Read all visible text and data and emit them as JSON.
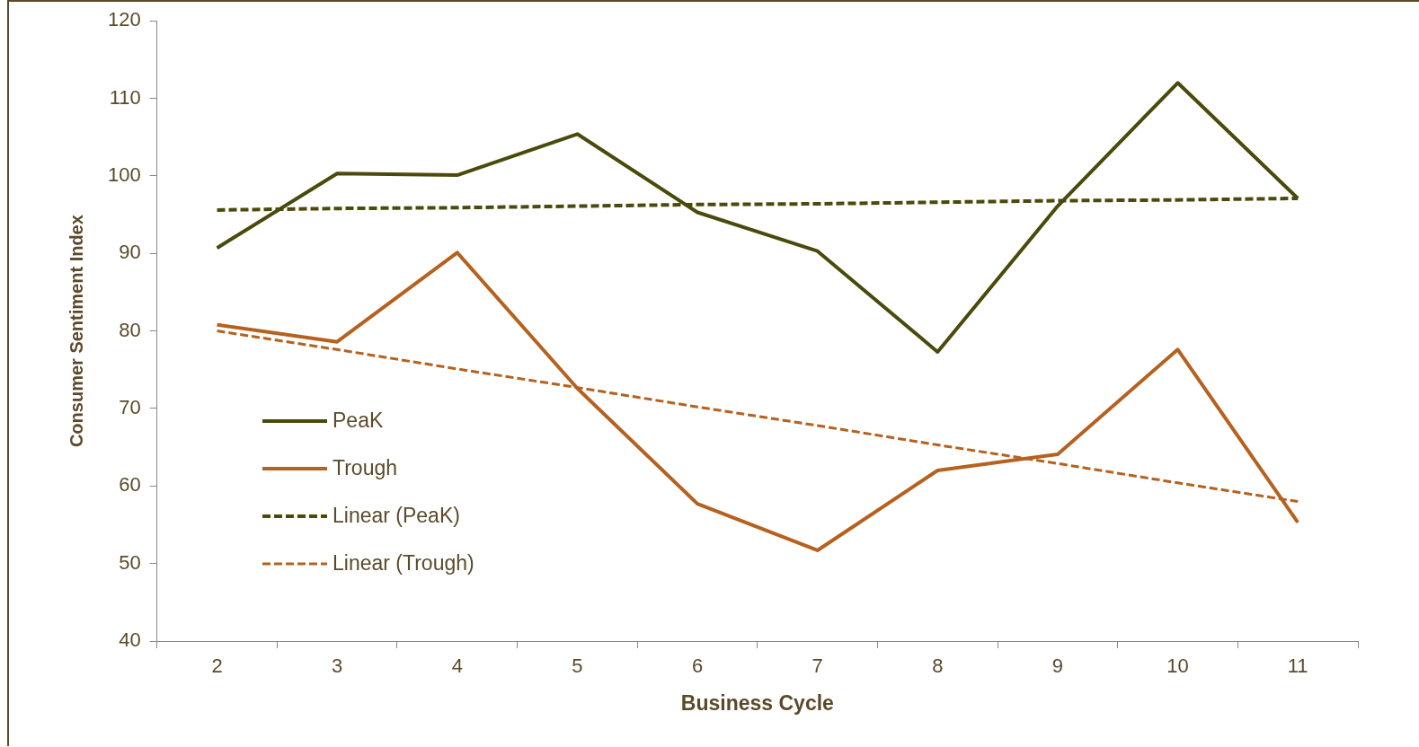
{
  "chart_data": {
    "type": "line",
    "xlabel": "Business Cycle",
    "ylabel": "Consumer Sentiment Index",
    "categories": [
      "2",
      "3",
      "4",
      "5",
      "6",
      "7",
      "8",
      "9",
      "10",
      "11"
    ],
    "ylim": [
      40,
      120
    ],
    "yticks": [
      40,
      50,
      60,
      70,
      80,
      90,
      100,
      110,
      120
    ],
    "grid": false,
    "legend": "bottom left",
    "marker": "none",
    "series": [
      {
        "name": "PeaK",
        "color": "#4a4a0c",
        "line_style": "solid",
        "values": [
          90.7,
          100.3,
          100.1,
          105.4,
          95.3,
          90.3,
          77.3,
          96.1,
          112.0,
          97.1
        ]
      },
      {
        "name": "Trough",
        "color": "#b5611f",
        "line_style": "solid",
        "values": [
          80.8,
          78.6,
          90.1,
          72.6,
          57.7,
          51.7,
          62.0,
          64.1,
          77.6,
          55.3
        ]
      },
      {
        "name": "Linear (PeaK)",
        "color": "#4a4a0c",
        "line_style": "dashed",
        "values": [
          95.6,
          95.8,
          95.9,
          96.1,
          96.3,
          96.4,
          96.6,
          96.8,
          96.9,
          97.1
        ]
      },
      {
        "name": "Linear (Trough)",
        "color": "#b5611f",
        "line_style": "dashed",
        "values": [
          80.0,
          77.6,
          75.1,
          72.7,
          70.2,
          67.8,
          65.3,
          62.9,
          60.4,
          58.0
        ]
      }
    ]
  }
}
